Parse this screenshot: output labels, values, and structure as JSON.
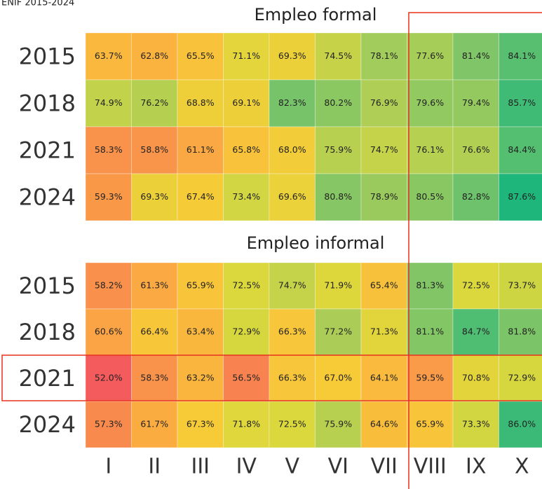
{
  "caption": "ENIF 2015-2024",
  "chart_data": {
    "type": "heatmap",
    "x": [
      "I",
      "II",
      "III",
      "IV",
      "V",
      "VI",
      "VII",
      "VIII",
      "IX",
      "X"
    ],
    "y": [
      "2015",
      "2018",
      "2021",
      "2024"
    ],
    "colors": [
      "#f45b5c",
      "#f8884f",
      "#fbb040",
      "#f7cb38",
      "#dcd83c",
      "#a9cd58",
      "#74c36b",
      "#1fb67b"
    ],
    "panels": [
      {
        "title": "Empleo formal",
        "values": [
          [
            63.7,
            62.8,
            65.5,
            71.1,
            69.3,
            74.5,
            78.1,
            77.6,
            81.4,
            84.1
          ],
          [
            74.9,
            76.2,
            68.8,
            69.1,
            82.3,
            80.2,
            76.9,
            79.6,
            79.4,
            85.7
          ],
          [
            58.3,
            58.8,
            61.1,
            65.8,
            68.0,
            75.9,
            74.7,
            76.1,
            76.6,
            84.4
          ],
          [
            59.3,
            69.3,
            67.4,
            73.4,
            69.6,
            80.8,
            78.9,
            80.5,
            82.8,
            87.6
          ]
        ],
        "value_labels": [
          [
            "63.7%",
            "62.8%",
            "65.5%",
            "71.1%",
            "69.3%",
            "74.5%",
            "78.1%",
            "77.6%",
            "81.4%",
            "84.1%"
          ],
          [
            "74.9%",
            "76.2%",
            "68.8%",
            "69.1%",
            "82.3%",
            "80.2%",
            "76.9%",
            "79.6%",
            "79.4%",
            "85.7%"
          ],
          [
            "58.3%",
            "58.8%",
            "61.1%",
            "65.8%",
            "68.0%",
            "75.9%",
            "74.7%",
            "76.1%",
            "76.6%",
            "84.4%"
          ],
          [
            "59.3%",
            "69.3%",
            "67.4%",
            "73.4%",
            "69.6%",
            "80.8%",
            "78.9%",
            "80.5%",
            "82.8%",
            "87.6%"
          ]
        ]
      },
      {
        "title": "Empleo informal",
        "values": [
          [
            58.2,
            61.3,
            65.9,
            72.5,
            74.7,
            71.9,
            65.4,
            81.3,
            72.5,
            73.7
          ],
          [
            60.6,
            66.4,
            63.4,
            72.9,
            66.3,
            77.2,
            71.3,
            81.1,
            84.7,
            81.8
          ],
          [
            52.0,
            58.3,
            63.2,
            56.5,
            66.3,
            67.0,
            64.1,
            59.5,
            70.8,
            72.9
          ],
          [
            57.3,
            61.7,
            67.3,
            71.8,
            72.5,
            75.9,
            64.6,
            65.9,
            73.3,
            86.0
          ]
        ],
        "value_labels": [
          [
            "58.2%",
            "61.3%",
            "65.9%",
            "72.5%",
            "74.7%",
            "71.9%",
            "65.4%",
            "81.3%",
            "72.5%",
            "73.7%"
          ],
          [
            "60.6%",
            "66.4%",
            "63.4%",
            "72.9%",
            "66.3%",
            "77.2%",
            "71.3%",
            "81.1%",
            "84.7%",
            "81.8%"
          ],
          [
            "52.0%",
            "58.3%",
            "63.2%",
            "56.5%",
            "66.3%",
            "67.0%",
            "64.1%",
            "59.5%",
            "70.8%",
            "72.9%"
          ],
          [
            "57.3%",
            "61.7%",
            "67.3%",
            "71.8%",
            "72.5%",
            "75.9%",
            "64.6%",
            "65.9%",
            "73.3%",
            "86.0%"
          ]
        ]
      }
    ]
  }
}
